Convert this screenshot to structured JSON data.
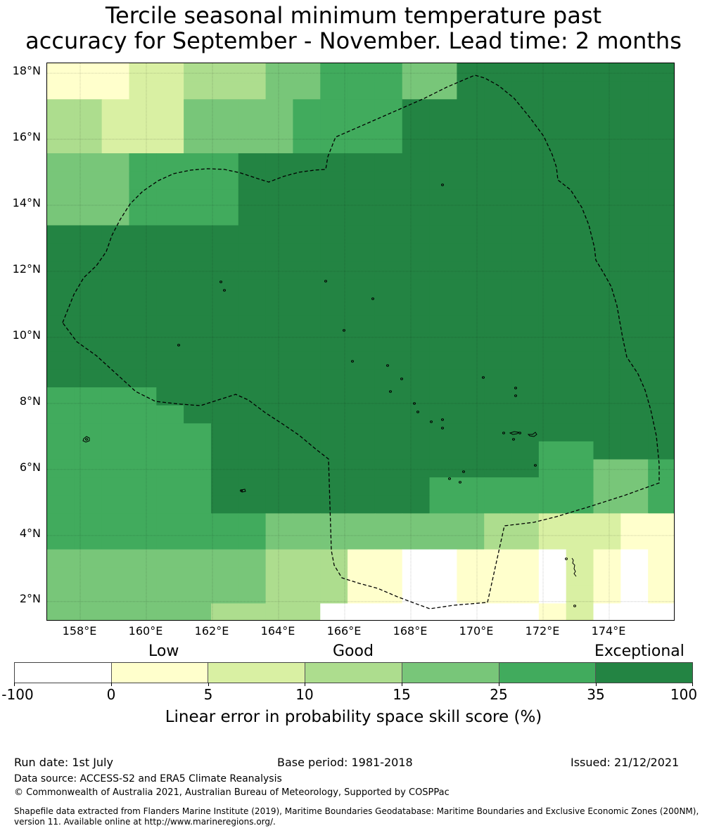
{
  "title_line1": "Tercile seasonal minimum temperature past",
  "title_line2": "accuracy for September - November. Lead time: 2 months",
  "map": {
    "lon_range": [
      157.0,
      176.0
    ],
    "lat_range": [
      1.4,
      18.3
    ],
    "y_ticks": [
      "18°N",
      "16°N",
      "14°N",
      "12°N",
      "10°N",
      "8°N",
      "6°N",
      "4°N",
      "2°N"
    ],
    "y_tick_values": [
      18,
      16,
      14,
      12,
      10,
      8,
      6,
      4,
      2
    ],
    "x_ticks": [
      "158°E",
      "160°E",
      "162°E",
      "164°E",
      "166°E",
      "168°E",
      "170°E",
      "172°E",
      "174°E"
    ],
    "x_tick_values": [
      158,
      160,
      162,
      164,
      166,
      168,
      170,
      172,
      174
    ],
    "grid": true,
    "boundary_style": "dashed",
    "colors": [
      "#ffffff",
      "#ffffcc",
      "#d9f0a3",
      "#addd8e",
      "#78c679",
      "#41ab5d",
      "#238443"
    ]
  },
  "colorbar": {
    "categories": [
      "Low",
      "Good",
      "Exceptional"
    ],
    "bounds": [
      "-100",
      "0",
      "5",
      "10",
      "15",
      "25",
      "35",
      "100"
    ],
    "colors": [
      "#ffffff",
      "#ffffcc",
      "#d9f0a3",
      "#addd8e",
      "#78c679",
      "#41ab5d",
      "#238443"
    ],
    "label": "Linear error in probability space skill score (%)"
  },
  "footer": {
    "run_date": "Run date: 1st July",
    "base_period": "Base period: 1981-2018",
    "issued": "Issued: 21/12/2021",
    "data_source": "Data source: ACCESS-S2 and ERA5 Climate Reanalysis",
    "copyright": "© Commonwealth of Australia 2021, Australian Bureau of Meteorology, Supported by COSPPac",
    "shapefile_line1": "Shapefile data extracted from Flanders Marine Institute (2019), Maritime Boundaries Geodatabase: Maritime Boundaries and Exclusive Economic Zones (200NM),",
    "shapefile_line2": "version 11. Available online at http://www.marineregions.org/."
  }
}
